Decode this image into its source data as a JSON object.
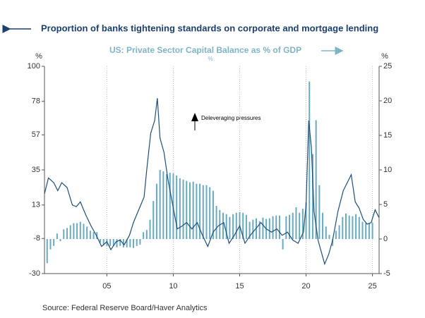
{
  "chart_data": {
    "type": "bar_line_dual_axis",
    "title": "Proportion of banks tightening standards on corporate and mortgage lending",
    "subtitle": "US: Private Sector Capital Balance as % of GDP",
    "subtitle_unit": "%",
    "y_label": "%",
    "y2_label": "%",
    "annotation": "Deleveraging pressures",
    "source": "Source:  Federal Reserve Board/Haver Analytics",
    "xlim": [
      2000.3,
      2025.5
    ],
    "xticks": [
      {
        "value": 2005,
        "label": "05"
      },
      {
        "value": 2010,
        "label": "10"
      },
      {
        "value": 2015,
        "label": "15"
      },
      {
        "value": 2020,
        "label": "20"
      },
      {
        "value": 2025,
        "label": "25"
      }
    ],
    "ylim": [
      -30,
      100
    ],
    "yticks": [
      -30,
      -8,
      13,
      35,
      57,
      78,
      100
    ],
    "y2lim": [
      -5,
      25
    ],
    "y2ticks": [
      -5,
      0,
      5,
      10,
      15,
      20,
      25
    ],
    "grid": "x",
    "series": [
      {
        "name": "Proportion of banks tightening standards on corporate and mortgage lending",
        "type": "line",
        "axis": "y",
        "color": "#1f4e79",
        "x": [
          2000.3,
          2000.6,
          2001.0,
          2001.3,
          2001.6,
          2002.0,
          2002.4,
          2002.7,
          2003.0,
          2003.4,
          2003.8,
          2004.2,
          2004.6,
          2005.0,
          2005.3,
          2005.7,
          2006.0,
          2006.3,
          2006.7,
          2007.0,
          2007.4,
          2007.8,
          2008.0,
          2008.3,
          2008.6,
          2008.8,
          2009.0,
          2009.3,
          2009.6,
          2010.0,
          2010.3,
          2010.7,
          2011.0,
          2011.4,
          2011.8,
          2012.2,
          2012.6,
          2013.0,
          2013.4,
          2013.8,
          2014.2,
          2014.6,
          2015.0,
          2015.4,
          2015.8,
          2016.2,
          2016.6,
          2017.0,
          2017.4,
          2017.8,
          2018.2,
          2018.6,
          2019.0,
          2019.4,
          2019.8,
          2020.0,
          2020.2,
          2020.4,
          2020.6,
          2020.9,
          2021.1,
          2021.4,
          2021.7,
          2022.0,
          2022.4,
          2022.8,
          2023.1,
          2023.4,
          2023.7,
          2024.0,
          2024.3,
          2024.6,
          2024.9,
          2025.2,
          2025.5
        ],
        "values": [
          20,
          30,
          27,
          22,
          27,
          24,
          13,
          12,
          15,
          7,
          0,
          -6,
          -13,
          -10,
          -15,
          -10,
          -9,
          -12,
          -6,
          2,
          10,
          18,
          35,
          58,
          66,
          80,
          55,
          46,
          29,
          11,
          -2,
          0,
          2,
          -2,
          2,
          -6,
          -13,
          -4,
          0,
          2,
          -11,
          -6,
          0,
          -11,
          -6,
          -2,
          2,
          -2,
          -4,
          -2,
          -6,
          -4,
          -9,
          -11,
          -4,
          13,
          66,
          49,
          9,
          -9,
          -15,
          -24,
          -18,
          -9,
          9,
          22,
          27,
          32,
          15,
          11,
          4,
          1,
          2,
          10,
          5
        ]
      },
      {
        "name": "US: Private Sector Capital Balance as % of GDP",
        "type": "bar",
        "axis": "y2",
        "color": "#6aaabf",
        "x": [
          2000.5,
          2000.75,
          2001.0,
          2001.25,
          2001.5,
          2001.75,
          2002.0,
          2002.25,
          2002.5,
          2002.75,
          2003.0,
          2003.25,
          2003.5,
          2003.75,
          2004.0,
          2004.25,
          2004.5,
          2004.75,
          2005.0,
          2005.25,
          2005.5,
          2005.75,
          2006.0,
          2006.25,
          2006.5,
          2006.75,
          2007.0,
          2007.25,
          2007.5,
          2007.75,
          2008.0,
          2008.25,
          2008.5,
          2008.75,
          2009.0,
          2009.25,
          2009.5,
          2009.75,
          2010.0,
          2010.25,
          2010.5,
          2010.75,
          2011.0,
          2011.25,
          2011.5,
          2011.75,
          2012.0,
          2012.25,
          2012.5,
          2012.75,
          2013.0,
          2013.25,
          2013.5,
          2013.75,
          2014.0,
          2014.25,
          2014.5,
          2014.75,
          2015.0,
          2015.25,
          2015.5,
          2015.75,
          2016.0,
          2016.25,
          2016.5,
          2016.75,
          2017.0,
          2017.25,
          2017.5,
          2017.75,
          2018.0,
          2018.25,
          2018.5,
          2018.75,
          2019.0,
          2019.25,
          2019.5,
          2019.75,
          2020.0,
          2020.25,
          2020.5,
          2020.75,
          2021.0,
          2021.25,
          2021.5,
          2021.75,
          2022.0,
          2022.25,
          2022.5,
          2022.75,
          2023.0,
          2023.25,
          2023.5,
          2023.75,
          2024.0,
          2024.25,
          2024.5,
          2024.75,
          2025.0
        ],
        "values": [
          -3.5,
          -1.5,
          -1,
          0.8,
          -0.3,
          1.4,
          1.6,
          2,
          2.3,
          2.3,
          2.5,
          2.2,
          1.8,
          1.2,
          1,
          1,
          -0.5,
          -0.9,
          -1,
          -1,
          -1,
          -1.2,
          -1,
          -1.2,
          -1.2,
          -1.2,
          -1.3,
          -1,
          -0.8,
          1,
          1.3,
          2.8,
          5.5,
          8,
          10,
          9.8,
          9.4,
          9.6,
          9.5,
          9.2,
          8.8,
          8.6,
          8.4,
          8.2,
          8.3,
          8,
          8,
          7.8,
          7.8,
          7.5,
          7,
          4.8,
          4.2,
          3.8,
          3.6,
          3.2,
          3.6,
          3.8,
          3.9,
          3.8,
          3.5,
          2.5,
          2.8,
          3,
          2.6,
          3.1,
          2.9,
          3,
          3.3,
          3.4,
          3.4,
          -1.5,
          3.3,
          3.5,
          3.8,
          4.6,
          3.8,
          4.4,
          5.3,
          22.8,
          12.3,
          17.2,
          7.8,
          3.8,
          1.8,
          0.6,
          -1,
          1.2,
          2,
          3.2,
          3.7,
          3.4,
          3.3,
          3.6,
          3.2,
          2.5,
          2.3,
          2.3,
          2.4
        ]
      }
    ]
  }
}
